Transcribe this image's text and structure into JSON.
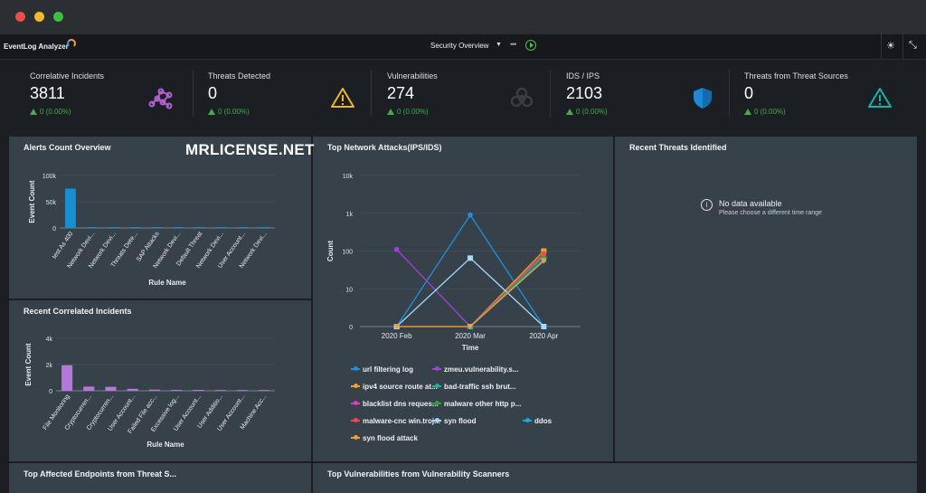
{
  "app": {
    "logo_text": "EventLog Analyzer",
    "center_title": "Security Overview",
    "traffic_colors": [
      "#ee4c48",
      "#f2b92c",
      "#3fbe3f"
    ]
  },
  "kpis": [
    {
      "label": "Correlative Incidents",
      "value": "3811",
      "change": "0 (0.00%)",
      "icon": "network-nodes-icon",
      "color": "#b060d0"
    },
    {
      "label": "Threats Detected",
      "value": "0",
      "change": "0 (0.00%)",
      "icon": "warning-triangle-icon",
      "color": "#f0b429"
    },
    {
      "label": "Vulnerabilities",
      "value": "274",
      "change": "0 (0.00%)",
      "icon": "biohazard-icon",
      "color": "#3a3d42"
    },
    {
      "label": "IDS / IPS",
      "value": "2103",
      "change": "0 (0.00%)",
      "icon": "shield-icon",
      "color": "#1e88d8"
    },
    {
      "label": "Threats from Threat Sources",
      "value": "0",
      "change": "0 (0.00%)",
      "icon": "warning-triangle-icon",
      "color": "#19b2a8"
    }
  ],
  "watermark": "MRLICENSE.NET",
  "panels": {
    "alerts": {
      "title": "Alerts Count Overview"
    },
    "correlated": {
      "title": "Recent Correlated Incidents"
    },
    "attacks": {
      "title": "Top Network Attacks(IPS/IDS)"
    },
    "threats": {
      "title": "Recent Threats Identified",
      "nodata": "No data available",
      "nodata_hint": "Please choose a different time range"
    },
    "endpoints": {
      "title": "Top Affected Endpoints from Threat S..."
    },
    "vulns": {
      "title": "Top Vulnerabilities from Vulnerability Scanners"
    }
  },
  "chart_data": [
    {
      "type": "bar",
      "title": "Alerts Count Overview",
      "xlabel": "Rule Name",
      "ylabel": "Event Count",
      "yticks": [
        "0",
        "50k",
        "100k"
      ],
      "ylim": [
        0,
        100000
      ],
      "color": "#1a8fd0",
      "categories": [
        "test As 400",
        "Network Devi...",
        "Network Devi...",
        "Threats Dete...",
        "SAP Attacks",
        "Network Devi...",
        "Default Threat",
        "Network Devi...",
        "User Account...",
        "Network Devi..."
      ],
      "values": [
        75000,
        1500,
        1500,
        1500,
        1500,
        1500,
        1500,
        1500,
        1500,
        1500
      ]
    },
    {
      "type": "bar",
      "title": "Recent Correlated Incidents",
      "xlabel": "Rule Name",
      "ylabel": "Event Count",
      "yticks": [
        "0",
        "2k",
        "4k"
      ],
      "ylim": [
        0,
        4000
      ],
      "color": "#b27ad6",
      "categories": [
        "File Monitoring",
        "Cryptocurren...",
        "Cryptocurren...",
        "User Account...",
        "Failed File acc...",
        "Excessive log...",
        "User Account...",
        "User Additio...",
        "User Account...",
        "Machine Acc..."
      ],
      "values": [
        1950,
        320,
        300,
        150,
        90,
        70,
        70,
        60,
        60,
        60
      ]
    },
    {
      "type": "line",
      "title": "Top Network Attacks(IPS/IDS)",
      "xlabel": "Time",
      "ylabel": "Count",
      "yscale": "log",
      "yticks": [
        "0",
        "10",
        "100",
        "1k",
        "10k"
      ],
      "x": [
        "2020 Feb",
        "2020 Mar",
        "2020 Apr"
      ],
      "series": [
        {
          "name": "url filtering log",
          "color": "#1e90e0",
          "marker": "circle",
          "values": [
            0,
            900,
            0
          ]
        },
        {
          "name": "zmeu.vulnerability.s...",
          "color": "#a040e0",
          "marker": "circle",
          "values": [
            110,
            0,
            null
          ]
        },
        {
          "name": "ipv4 source route at...",
          "color": "#f0a030",
          "marker": "square",
          "values": [
            0,
            0,
            100
          ]
        },
        {
          "name": "bad-traffic ssh brut...",
          "color": "#20b0a0",
          "marker": "triangle",
          "values": [
            null,
            0,
            80
          ]
        },
        {
          "name": "blacklist dns reques...",
          "color": "#d040c0",
          "marker": "circle",
          "values": [
            null,
            0,
            75
          ]
        },
        {
          "name": "malware other http p...",
          "color": "#30a040",
          "marker": "circle",
          "values": [
            null,
            0,
            70
          ]
        },
        {
          "name": "malware-cnc win.troj...",
          "color": "#e05050",
          "marker": "circle",
          "values": [
            null,
            0,
            85
          ]
        },
        {
          "name": "syn flood",
          "color": "#a8d8f8",
          "marker": "square",
          "values": [
            0,
            65,
            0
          ]
        },
        {
          "name": "ddos",
          "color": "#20a8d8",
          "marker": "triangle",
          "values": [
            null,
            0,
            60
          ]
        },
        {
          "name": "syn flood attack",
          "color": "#e8a040",
          "marker": "triangle-down",
          "values": [
            0,
            0,
            55
          ]
        }
      ]
    }
  ]
}
